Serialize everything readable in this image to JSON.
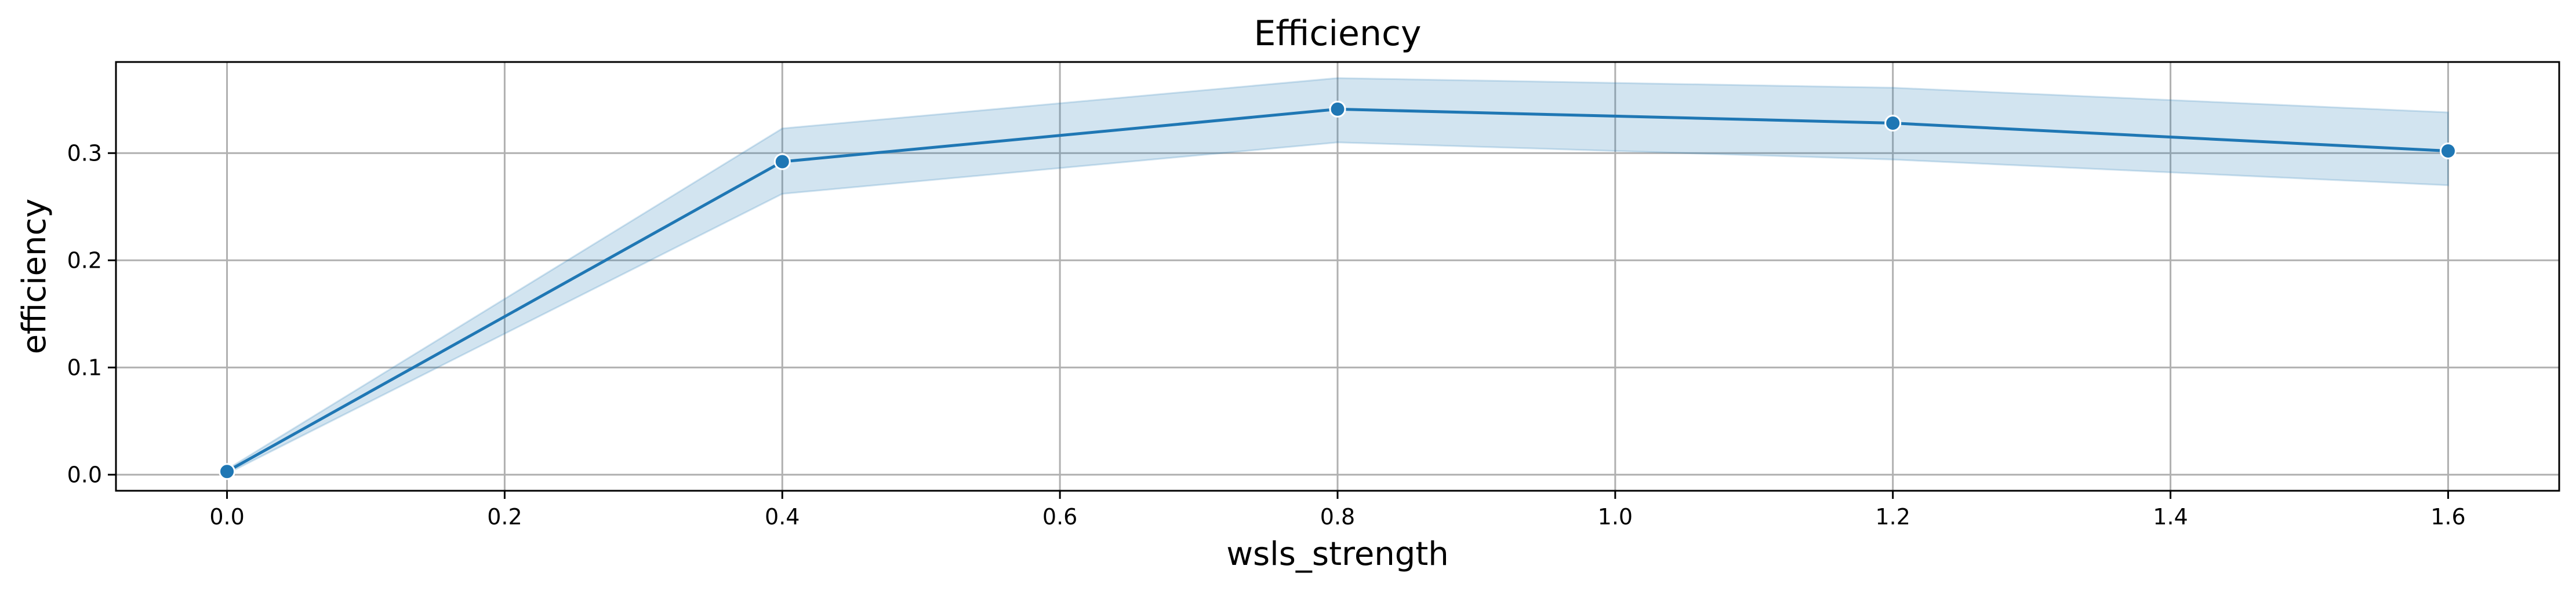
{
  "chart_data": {
    "type": "line",
    "title": "Efficiency",
    "xlabel": "wsls_strength",
    "ylabel": "efficiency",
    "xlim": [
      -0.08,
      1.68
    ],
    "ylim": [
      -0.015,
      0.385
    ],
    "xticks": [
      0.0,
      0.2,
      0.4,
      0.6,
      0.8,
      1.0,
      1.2,
      1.4,
      1.6
    ],
    "xtick_labels": [
      "0.0",
      "0.2",
      "0.4",
      "0.6",
      "0.8",
      "1.0",
      "1.2",
      "1.4",
      "1.6"
    ],
    "yticks": [
      0.0,
      0.1,
      0.2,
      0.3
    ],
    "ytick_labels": [
      "0.0",
      "0.1",
      "0.2",
      "0.3"
    ],
    "grid": true,
    "colors": {
      "series": "#1f77b4",
      "grid": "#b0b0b0"
    },
    "series": [
      {
        "x": [
          0.0,
          0.4,
          0.8,
          1.2,
          1.6
        ],
        "y": [
          0.003,
          0.292,
          0.341,
          0.328,
          0.302
        ],
        "ci_lower": [
          0.001,
          0.262,
          0.31,
          0.294,
          0.27
        ],
        "ci_upper": [
          0.005,
          0.323,
          0.37,
          0.361,
          0.338
        ]
      }
    ]
  }
}
